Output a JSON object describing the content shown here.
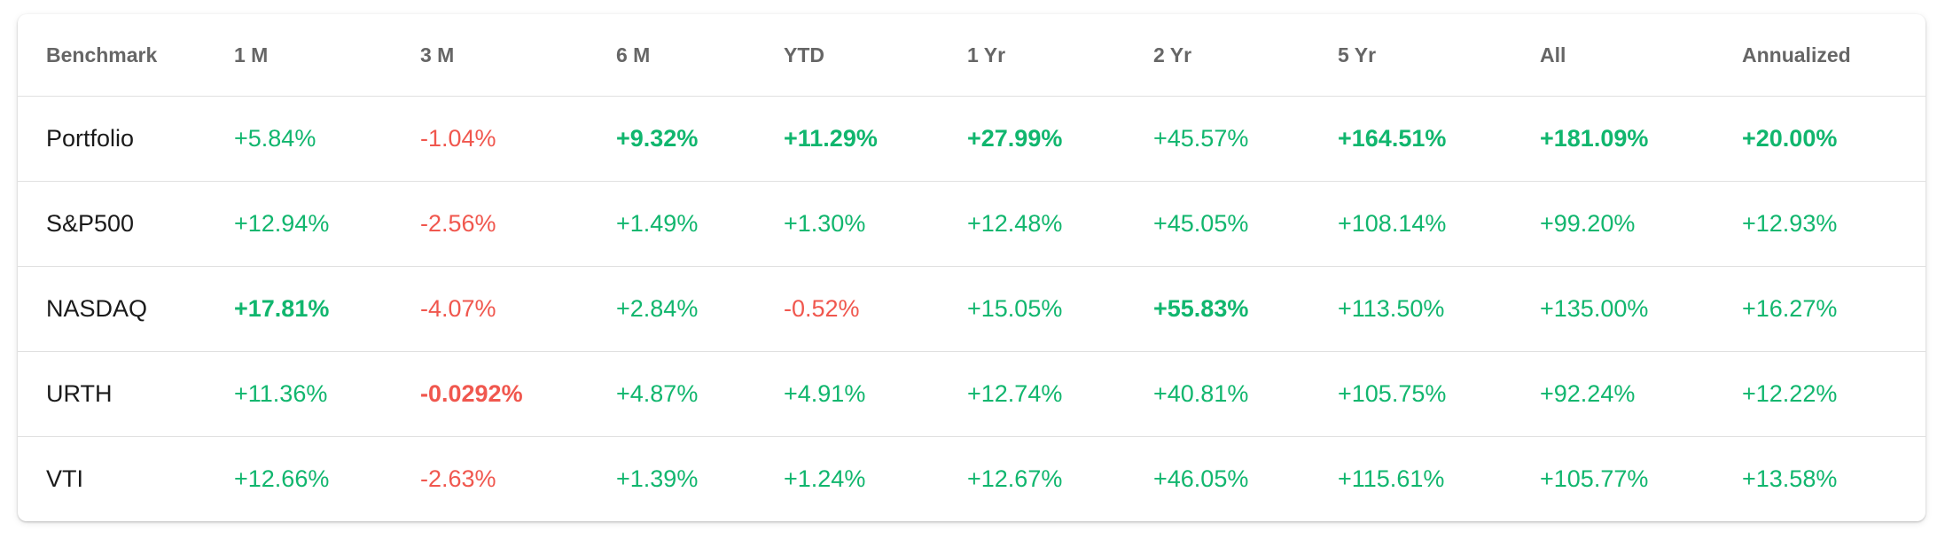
{
  "table": {
    "columns": [
      "Benchmark",
      "1 M",
      "3 M",
      "6 M",
      "YTD",
      "1 Yr",
      "2 Yr",
      "5 Yr",
      "All",
      "Annualized"
    ],
    "colors": {
      "positive": "#11b66e",
      "negative": "#f0574e",
      "header": "#666666"
    },
    "rows": [
      {
        "name": "Portfolio",
        "cells": [
          {
            "value": "+5.84%",
            "sign": "pos",
            "highlight": false
          },
          {
            "value": "-1.04%",
            "sign": "neg",
            "highlight": false
          },
          {
            "value": "+9.32%",
            "sign": "pos",
            "highlight": true
          },
          {
            "value": "+11.29%",
            "sign": "pos",
            "highlight": true
          },
          {
            "value": "+27.99%",
            "sign": "pos",
            "highlight": true
          },
          {
            "value": "+45.57%",
            "sign": "pos",
            "highlight": false
          },
          {
            "value": "+164.51%",
            "sign": "pos",
            "highlight": true
          },
          {
            "value": "+181.09%",
            "sign": "pos",
            "highlight": true
          },
          {
            "value": "+20.00%",
            "sign": "pos",
            "highlight": true
          }
        ]
      },
      {
        "name": "S&P500",
        "cells": [
          {
            "value": "+12.94%",
            "sign": "pos",
            "highlight": false
          },
          {
            "value": "-2.56%",
            "sign": "neg",
            "highlight": false
          },
          {
            "value": "+1.49%",
            "sign": "pos",
            "highlight": false
          },
          {
            "value": "+1.30%",
            "sign": "pos",
            "highlight": false
          },
          {
            "value": "+12.48%",
            "sign": "pos",
            "highlight": false
          },
          {
            "value": "+45.05%",
            "sign": "pos",
            "highlight": false
          },
          {
            "value": "+108.14%",
            "sign": "pos",
            "highlight": false
          },
          {
            "value": "+99.20%",
            "sign": "pos",
            "highlight": false
          },
          {
            "value": "+12.93%",
            "sign": "pos",
            "highlight": false
          }
        ]
      },
      {
        "name": "NASDAQ",
        "cells": [
          {
            "value": "+17.81%",
            "sign": "pos",
            "highlight": true
          },
          {
            "value": "-4.07%",
            "sign": "neg",
            "highlight": false
          },
          {
            "value": "+2.84%",
            "sign": "pos",
            "highlight": false
          },
          {
            "value": "-0.52%",
            "sign": "neg",
            "highlight": false
          },
          {
            "value": "+15.05%",
            "sign": "pos",
            "highlight": false
          },
          {
            "value": "+55.83%",
            "sign": "pos",
            "highlight": true
          },
          {
            "value": "+113.50%",
            "sign": "pos",
            "highlight": false
          },
          {
            "value": "+135.00%",
            "sign": "pos",
            "highlight": false
          },
          {
            "value": "+16.27%",
            "sign": "pos",
            "highlight": false
          }
        ]
      },
      {
        "name": "URTH",
        "cells": [
          {
            "value": "+11.36%",
            "sign": "pos",
            "highlight": false
          },
          {
            "value": "-0.0292%",
            "sign": "neg",
            "highlight": true
          },
          {
            "value": "+4.87%",
            "sign": "pos",
            "highlight": false
          },
          {
            "value": "+4.91%",
            "sign": "pos",
            "highlight": false
          },
          {
            "value": "+12.74%",
            "sign": "pos",
            "highlight": false
          },
          {
            "value": "+40.81%",
            "sign": "pos",
            "highlight": false
          },
          {
            "value": "+105.75%",
            "sign": "pos",
            "highlight": false
          },
          {
            "value": "+92.24%",
            "sign": "pos",
            "highlight": false
          },
          {
            "value": "+12.22%",
            "sign": "pos",
            "highlight": false
          }
        ]
      },
      {
        "name": "VTI",
        "cells": [
          {
            "value": "+12.66%",
            "sign": "pos",
            "highlight": false
          },
          {
            "value": "-2.63%",
            "sign": "neg",
            "highlight": false
          },
          {
            "value": "+1.39%",
            "sign": "pos",
            "highlight": false
          },
          {
            "value": "+1.24%",
            "sign": "pos",
            "highlight": false
          },
          {
            "value": "+12.67%",
            "sign": "pos",
            "highlight": false
          },
          {
            "value": "+46.05%",
            "sign": "pos",
            "highlight": false
          },
          {
            "value": "+115.61%",
            "sign": "pos",
            "highlight": false
          },
          {
            "value": "+105.77%",
            "sign": "pos",
            "highlight": false
          },
          {
            "value": "+13.58%",
            "sign": "pos",
            "highlight": false
          }
        ]
      }
    ]
  }
}
